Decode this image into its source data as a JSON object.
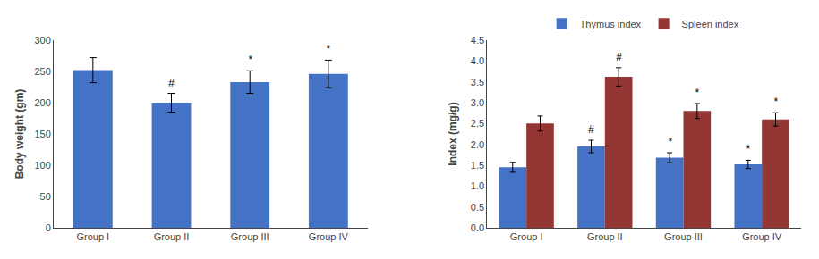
{
  "chart_data": [
    {
      "type": "bar",
      "categories": [
        "Group I",
        "Group II",
        "Group III",
        "Group IV"
      ],
      "values": [
        252,
        200,
        233,
        246
      ],
      "errors": [
        20,
        15,
        18,
        22
      ],
      "color": "#4472C4",
      "ylabel": "Body weight (gm)",
      "ylim": [
        0,
        300
      ],
      "yticks": [
        0,
        50,
        100,
        150,
        200,
        250,
        300
      ],
      "annotations": [
        null,
        "#",
        "*",
        "*"
      ],
      "grid": false
    },
    {
      "type": "bar",
      "categories": [
        "Group I",
        "Group II",
        "Group III",
        "Group IV"
      ],
      "series": [
        {
          "name": "Thymus index",
          "color": "#4472C4",
          "values": [
            1.45,
            1.95,
            1.68,
            1.52
          ],
          "errors": [
            0.12,
            0.15,
            0.12,
            0.1
          ],
          "annotations": [
            null,
            "#",
            "*",
            "*"
          ]
        },
        {
          "name": "Spleen index",
          "color": "#943634",
          "values": [
            2.5,
            3.62,
            2.8,
            2.6
          ],
          "errors": [
            0.18,
            0.22,
            0.18,
            0.16
          ],
          "annotations": [
            null,
            "#",
            "*",
            "*"
          ]
        }
      ],
      "ylabel": "Index (mg/g)",
      "ylim": [
        0,
        4.5
      ],
      "yticks": [
        {
          "value": 0,
          "label": "0.0"
        },
        0.5,
        {
          "value": 1,
          "label": "1.0"
        },
        1.5,
        {
          "value": 2,
          "label": "2.0"
        },
        2.5,
        {
          "value": 3,
          "label": "3.0"
        },
        3.5,
        {
          "value": 4,
          "label": "4.0"
        },
        4.5
      ],
      "legend": "top",
      "grid": false
    }
  ]
}
